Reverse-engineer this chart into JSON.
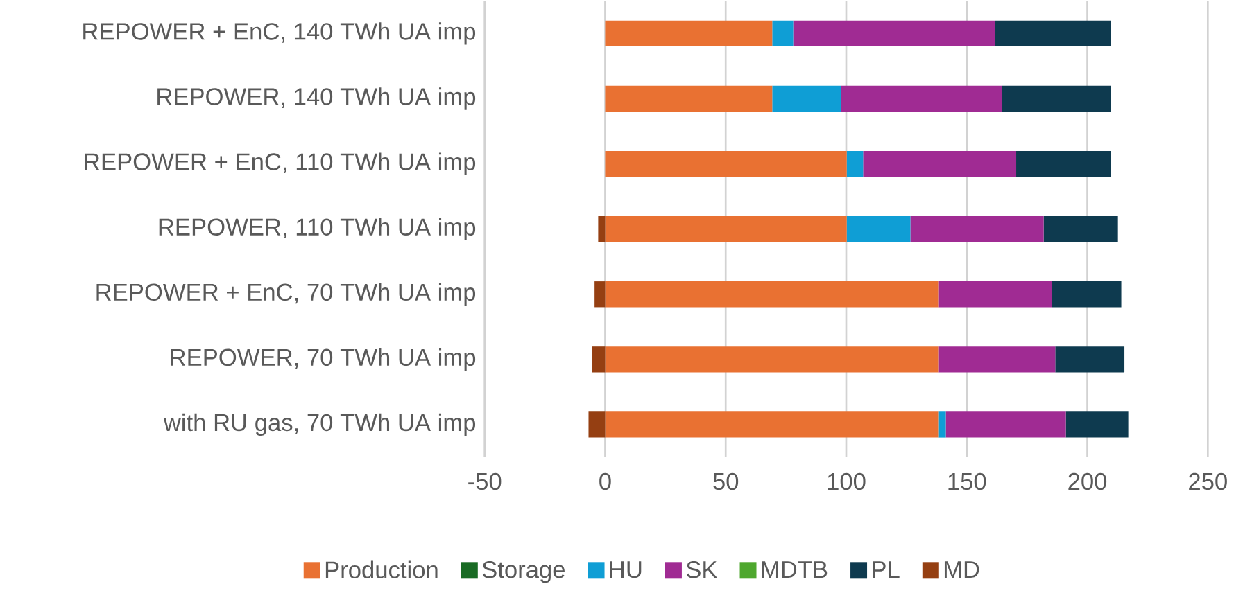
{
  "chart_data": {
    "type": "bar",
    "orientation": "horizontal",
    "stacked": true,
    "categories": [
      "REPOWER + EnC, 140 TWh UA imp",
      "REPOWER, 140 TWh UA imp",
      "REPOWER + EnC, 110 TWh UA imp",
      "REPOWER, 110 TWh UA imp",
      "REPOWER + EnC, 70 TWh UA imp",
      "REPOWER, 70 TWh UA imp",
      "with RU gas, 70 TWh UA imp"
    ],
    "series": [
      {
        "name": "Production",
        "color": "#e97132",
        "values": [
          69.3,
          69.3,
          100.2,
          100.2,
          138.4,
          138.4,
          138.4
        ]
      },
      {
        "name": "Storage",
        "color": "#196b24",
        "values": [
          0,
          0,
          0,
          0,
          0,
          0,
          0
        ]
      },
      {
        "name": "HU",
        "color": "#0f9ed5",
        "values": [
          8.7,
          28.6,
          6.8,
          26.4,
          0,
          0,
          2.9
        ]
      },
      {
        "name": "SK",
        "color": "#a02b93",
        "values": [
          83.6,
          66.6,
          63.5,
          55.3,
          46.9,
          48.3,
          49.8
        ]
      },
      {
        "name": "MDTB",
        "color": "#4ea72e",
        "values": [
          0,
          0,
          0,
          0,
          0,
          0,
          0
        ]
      },
      {
        "name": "PL",
        "color": "#0e3a4f",
        "values": [
          48.2,
          45.3,
          39.3,
          30.8,
          28.8,
          28.7,
          25.9
        ]
      },
      {
        "name": "MD",
        "color": "#953f12",
        "values": [
          0,
          0,
          0,
          -2.9,
          -4.4,
          -5.6,
          -6.9
        ]
      }
    ],
    "xlim": [
      -50,
      250
    ],
    "xticks": [
      -50,
      0,
      50,
      100,
      150,
      200,
      250
    ],
    "grid": "x",
    "legend": "bottom"
  }
}
